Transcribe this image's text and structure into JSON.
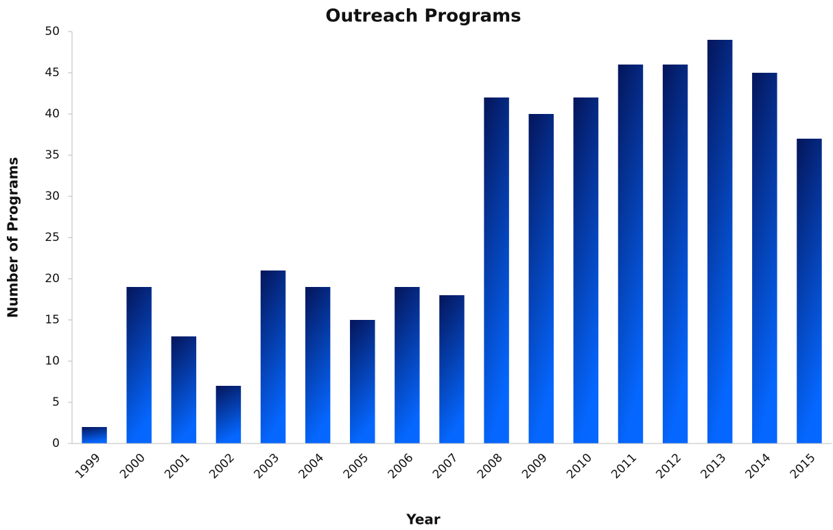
{
  "chart_data": {
    "type": "bar",
    "title": "Outreach Programs",
    "x_label": "Year",
    "y_label": "Number of Programs",
    "categories": [
      "1999",
      "2000",
      "2001",
      "2002",
      "2003",
      "2004",
      "2005",
      "2006",
      "2007",
      "2008",
      "2009",
      "2010",
      "2011",
      "2012",
      "2013",
      "2014",
      "2015"
    ],
    "values": [
      2,
      19,
      13,
      7,
      21,
      19,
      15,
      19,
      18,
      42,
      40,
      42,
      46,
      46,
      49,
      45,
      37
    ],
    "color": "#0a2fc8",
    "ylim": [
      0,
      50
    ],
    "yticks": [
      0,
      5,
      10,
      15,
      20,
      25,
      30,
      35,
      40,
      45,
      50
    ],
    "grid": false
  }
}
